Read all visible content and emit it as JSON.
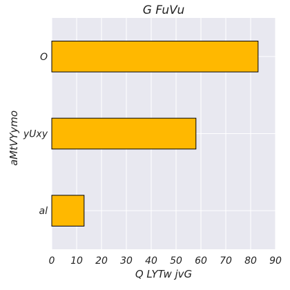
{
  "chart_data": {
    "type": "bar",
    "orientation": "horizontal",
    "title": "G FuVu",
    "xlabel": "Q LYTw jvG",
    "ylabel": "aMtVYymo",
    "categories": [
      "O",
      "yUxy",
      "al"
    ],
    "values": [
      83,
      58,
      13
    ],
    "xlim": [
      0,
      90
    ],
    "xticks": [
      "0",
      "10",
      "20",
      "30",
      "40",
      "50",
      "60",
      "70",
      "80",
      "90"
    ],
    "grid": true,
    "legend": "none",
    "colors": {
      "bar": "#FFB800",
      "bar_edge": "#000000",
      "plot_background": "#E8E8F0",
      "grid": "#FFFFFF"
    }
  }
}
